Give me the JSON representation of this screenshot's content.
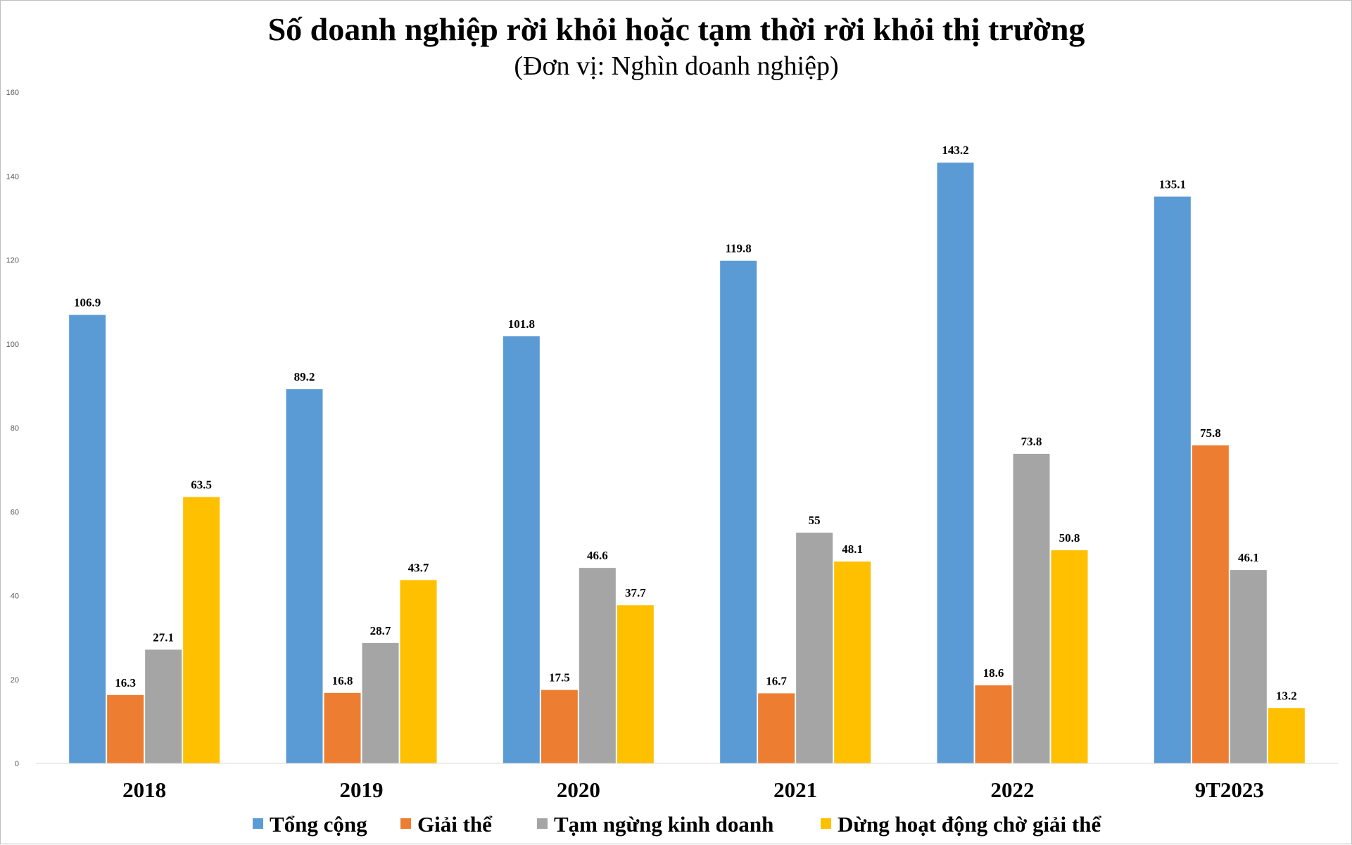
{
  "chart_data": {
    "type": "bar",
    "title": "Số doanh nghiệp rời khỏi hoặc tạm thời rời khỏi thị trường",
    "subtitle": "(Đơn vị: Nghìn doanh nghiệp)",
    "categories": [
      "2018",
      "2019",
      "2020",
      "2021",
      "2022",
      "9T2023"
    ],
    "series": [
      {
        "name": "Tổng cộng",
        "color": "#5B9BD5",
        "values": [
          106.9,
          89.2,
          101.8,
          119.8,
          143.2,
          135.1
        ]
      },
      {
        "name": "Giải thể",
        "color": "#ED7D31",
        "values": [
          16.3,
          16.8,
          17.5,
          16.7,
          18.6,
          75.8
        ]
      },
      {
        "name": "Tạm ngừng kinh doanh",
        "color": "#A5A5A5",
        "values": [
          27.1,
          28.7,
          46.6,
          55,
          73.8,
          46.1
        ]
      },
      {
        "name": "Dừng hoạt động chờ giải thể",
        "color": "#FFC000",
        "values": [
          63.5,
          43.7,
          37.7,
          48.1,
          50.8,
          13.2
        ]
      }
    ],
    "ylim": [
      0,
      160
    ],
    "yticks": [
      0,
      20,
      40,
      60,
      80,
      100,
      120,
      140,
      160
    ],
    "grid": false,
    "legend": "bottom",
    "xlabel": "",
    "ylabel": ""
  }
}
